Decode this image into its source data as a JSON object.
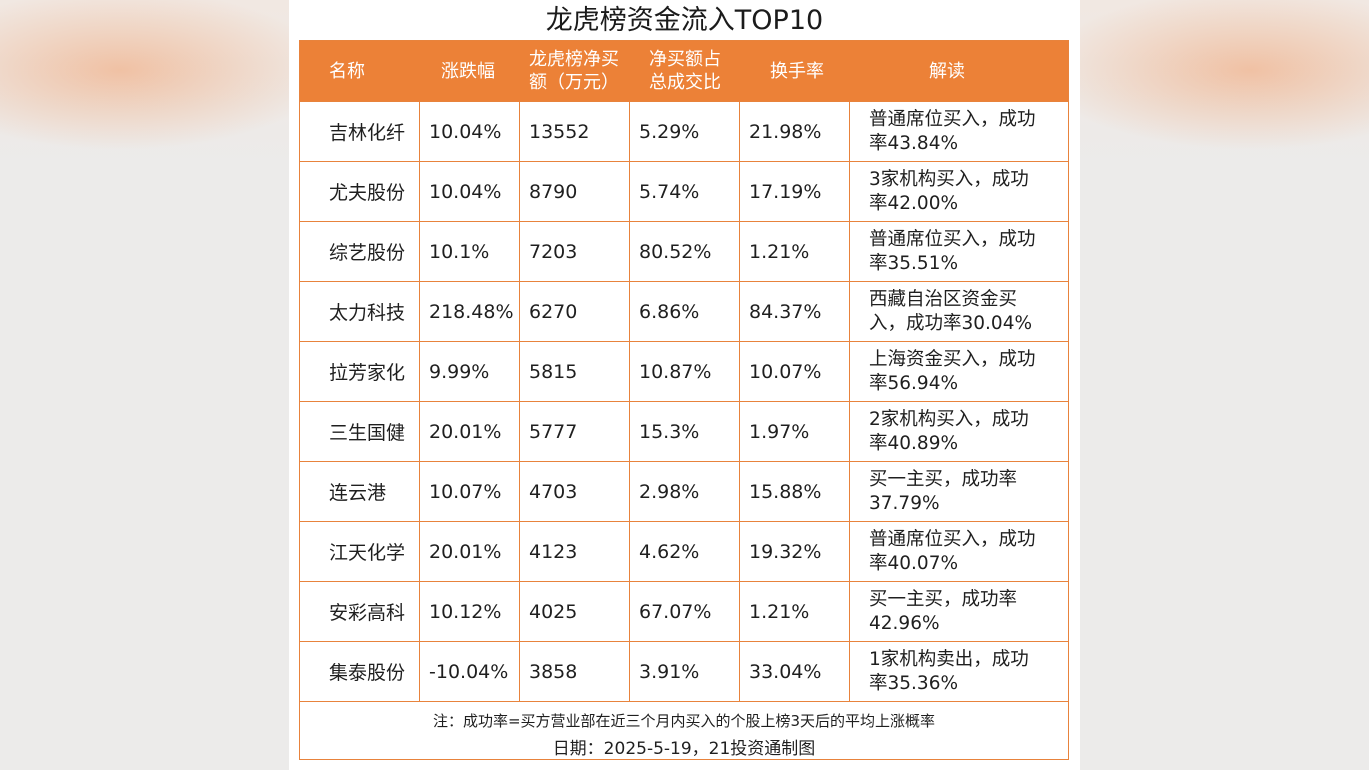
{
  "title": "龙虎榜资金流入TOP10",
  "headers": [
    "名称",
    "涨跌幅",
    "龙虎榜净买额（万元）",
    "净买额占总成交比",
    "换手率",
    "解读"
  ],
  "rows": [
    {
      "name": "吉林化纤",
      "change": "10.04%",
      "net_buy": "13552",
      "ratio": "5.29%",
      "turnover": "21.98%",
      "note": "普通席位买入，成功率43.84%"
    },
    {
      "name": "尤夫股份",
      "change": "10.04%",
      "net_buy": "8790",
      "ratio": "5.74%",
      "turnover": "17.19%",
      "note": "3家机构买入，成功率42.00%"
    },
    {
      "name": "综艺股份",
      "change": "10.1%",
      "net_buy": "7203",
      "ratio": "80.52%",
      "turnover": "1.21%",
      "note": "普通席位买入，成功率35.51%"
    },
    {
      "name": "太力科技",
      "change": "218.48%",
      "net_buy": "6270",
      "ratio": "6.86%",
      "turnover": "84.37%",
      "note": "西藏自治区资金买入，成功率30.04%"
    },
    {
      "name": "拉芳家化",
      "change": "9.99%",
      "net_buy": "5815",
      "ratio": "10.87%",
      "turnover": "10.07%",
      "note": "上海资金买入，成功率56.94%"
    },
    {
      "name": "三生国健",
      "change": "20.01%",
      "net_buy": "5777",
      "ratio": "15.3%",
      "turnover": "1.97%",
      "note": "2家机构买入，成功率40.89%"
    },
    {
      "name": "连云港",
      "change": "10.07%",
      "net_buy": "4703",
      "ratio": "2.98%",
      "turnover": "15.88%",
      "note": "买一主买，成功率37.79%"
    },
    {
      "name": "江天化学",
      "change": "20.01%",
      "net_buy": "4123",
      "ratio": "4.62%",
      "turnover": "19.32%",
      "note": "普通席位买入，成功率40.07%"
    },
    {
      "name": "安彩高科",
      "change": "10.12%",
      "net_buy": "4025",
      "ratio": "67.07%",
      "turnover": "1.21%",
      "note": "买一主买，成功率42.96%"
    },
    {
      "name": "集泰股份",
      "change": "-10.04%",
      "net_buy": "3858",
      "ratio": "3.91%",
      "turnover": "33.04%",
      "note": "1家机构卖出，成功率35.36%"
    }
  ],
  "footnote": "注：成功率=买方营业部在近三个月内买入的个股上榜3天后的平均上涨概率",
  "date_line": "日期：2025-5-19，21投资通制图",
  "colors": {
    "accent": "#ec8137",
    "border": "#e8833c"
  }
}
